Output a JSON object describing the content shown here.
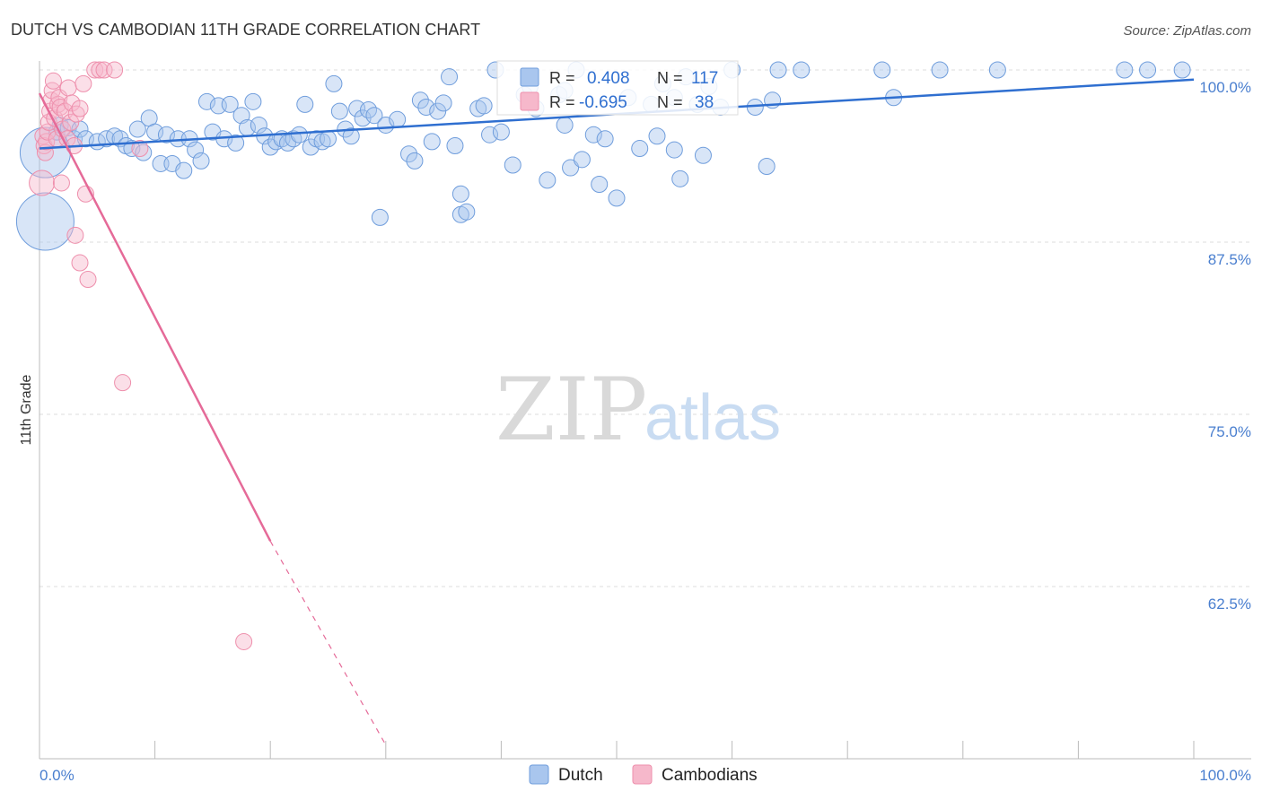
{
  "title": "DUTCH VS CAMBODIAN 11TH GRADE CORRELATION CHART",
  "source": "Source: ZipAtlas.com",
  "watermark": {
    "zip": "ZIP",
    "atlas": "atlas"
  },
  "colors": {
    "dutch_fill": "#a9c6ee",
    "dutch_stroke": "#6f9ddc",
    "dutch_line": "#2f6fd0",
    "cambodian_fill": "#f6b8cb",
    "cambodian_stroke": "#ee8fac",
    "cambodian_line": "#e56a98",
    "tick_text": "#4a7fcf",
    "grid": "#dddddd"
  },
  "legend_top": {
    "r_label": "R =",
    "n_label": "N =",
    "dutch_r": "0.408",
    "dutch_n": "117",
    "cambodian_r": "-0.695",
    "cambodian_n": "38"
  },
  "legend_bottom": {
    "dutch": "Dutch",
    "cambodians": "Cambodians"
  },
  "chart_data": {
    "type": "scatter",
    "title": "DUTCH VS CAMBODIAN 11TH GRADE CORRELATION CHART",
    "xlabel": "",
    "ylabel": "11th Grade",
    "xlim": [
      0,
      100
    ],
    "ylim": [
      50,
      101.5
    ],
    "y_ticks": [
      62.5,
      75.0,
      87.5,
      100.0
    ],
    "y_tick_labels": [
      "62.5%",
      "75.0%",
      "87.5%",
      "100.0%"
    ],
    "x_tick_labels": [
      "0.0%",
      "100.0%"
    ],
    "grid": true,
    "legend_position": "top-center",
    "series": [
      {
        "name": "Dutch",
        "r": 0.408,
        "n": 117,
        "trend": {
          "x": [
            0,
            100
          ],
          "y": [
            94.3,
            99.3
          ]
        },
        "points": [
          [
            0.5,
            94.0,
            28
          ],
          [
            0.5,
            89.0,
            32
          ],
          [
            1.5,
            95.5,
            9
          ],
          [
            1.8,
            96.0,
            9
          ],
          [
            2.5,
            95.8,
            9
          ],
          [
            3.0,
            95.0,
            9
          ],
          [
            3.5,
            95.7,
            9
          ],
          [
            4.0,
            95.0,
            9
          ],
          [
            5.0,
            94.8,
            9
          ],
          [
            5.8,
            95.0,
            9
          ],
          [
            6.5,
            95.2,
            9
          ],
          [
            7.0,
            95.0,
            9
          ],
          [
            7.5,
            94.5,
            9
          ],
          [
            8.0,
            94.3,
            9
          ],
          [
            8.5,
            95.7,
            9
          ],
          [
            9.0,
            94.0,
            9
          ],
          [
            9.5,
            96.5,
            9
          ],
          [
            10.0,
            95.5,
            9
          ],
          [
            10.5,
            93.2,
            9
          ],
          [
            11.0,
            95.3,
            9
          ],
          [
            11.5,
            93.2,
            9
          ],
          [
            12.0,
            95.0,
            9
          ],
          [
            12.5,
            92.7,
            9
          ],
          [
            13.0,
            95.0,
            9
          ],
          [
            13.5,
            94.2,
            9
          ],
          [
            14.0,
            93.4,
            9
          ],
          [
            14.5,
            97.7,
            9
          ],
          [
            15.0,
            95.5,
            9
          ],
          [
            15.5,
            97.4,
            9
          ],
          [
            16.0,
            95.0,
            9
          ],
          [
            16.5,
            97.5,
            9
          ],
          [
            17.0,
            94.7,
            9
          ],
          [
            17.5,
            96.7,
            9
          ],
          [
            18.0,
            95.8,
            9
          ],
          [
            18.5,
            97.7,
            9
          ],
          [
            19.0,
            96.0,
            9
          ],
          [
            19.5,
            95.2,
            9
          ],
          [
            20.0,
            94.4,
            9
          ],
          [
            20.5,
            94.8,
            9
          ],
          [
            21.0,
            95.0,
            9
          ],
          [
            21.5,
            94.7,
            9
          ],
          [
            22.0,
            95.0,
            9
          ],
          [
            22.5,
            95.3,
            9
          ],
          [
            23.0,
            97.5,
            9
          ],
          [
            23.5,
            94.4,
            9
          ],
          [
            24.0,
            95.0,
            9
          ],
          [
            24.5,
            94.8,
            9
          ],
          [
            25.0,
            95.0,
            9
          ],
          [
            25.5,
            99.0,
            9
          ],
          [
            26.0,
            97.0,
            9
          ],
          [
            26.5,
            95.7,
            9
          ],
          [
            27.0,
            95.2,
            9
          ],
          [
            27.5,
            97.2,
            9
          ],
          [
            28.0,
            96.5,
            9
          ],
          [
            28.5,
            97.1,
            9
          ],
          [
            29.0,
            96.7,
            9
          ],
          [
            29.5,
            89.3,
            9
          ],
          [
            30.0,
            96.0,
            9
          ],
          [
            31.0,
            96.4,
            9
          ],
          [
            32.0,
            93.9,
            9
          ],
          [
            32.5,
            93.4,
            9
          ],
          [
            33.0,
            97.8,
            9
          ],
          [
            33.5,
            97.3,
            9
          ],
          [
            34.0,
            94.8,
            9
          ],
          [
            34.5,
            97.0,
            9
          ],
          [
            35.0,
            97.6,
            9
          ],
          [
            35.5,
            99.5,
            9
          ],
          [
            36.0,
            94.5,
            9
          ],
          [
            36.5,
            91.0,
            9
          ],
          [
            36.5,
            89.5,
            9
          ],
          [
            37.0,
            89.7,
            9
          ],
          [
            38.0,
            97.2,
            9
          ],
          [
            38.5,
            97.4,
            9
          ],
          [
            39.0,
            95.3,
            9
          ],
          [
            39.5,
            100.0,
            9
          ],
          [
            40.0,
            95.5,
            9
          ],
          [
            41.0,
            93.1,
            9
          ],
          [
            42.0,
            98.2,
            9
          ],
          [
            42.5,
            98.8,
            9
          ],
          [
            43.0,
            97.2,
            9
          ],
          [
            44.0,
            92.0,
            9
          ],
          [
            45.0,
            98.2,
            9
          ],
          [
            45.5,
            96.0,
            9
          ],
          [
            46.0,
            92.9,
            9
          ],
          [
            46.5,
            100.0,
            9
          ],
          [
            47.0,
            93.5,
            9
          ],
          [
            48.0,
            95.3,
            9
          ],
          [
            48.5,
            91.7,
            9
          ],
          [
            49.0,
            95.0,
            9
          ],
          [
            50.0,
            90.7,
            9
          ],
          [
            51.0,
            98.0,
            9
          ],
          [
            52.0,
            94.3,
            9
          ],
          [
            53.0,
            97.5,
            9
          ],
          [
            53.5,
            95.2,
            9
          ],
          [
            54.0,
            99.0,
            9
          ],
          [
            55.0,
            94.2,
            9
          ],
          [
            55.5,
            92.1,
            9
          ],
          [
            56.0,
            99.5,
            9
          ],
          [
            57.0,
            97.5,
            9
          ],
          [
            57.5,
            93.8,
            9
          ],
          [
            58.0,
            98.8,
            9
          ],
          [
            59.0,
            97.3,
            9
          ],
          [
            60.0,
            100.0,
            9
          ],
          [
            62.0,
            97.3,
            9
          ],
          [
            63.0,
            93.0,
            9
          ],
          [
            63.5,
            97.8,
            9
          ],
          [
            64.0,
            100.0,
            9
          ],
          [
            66.0,
            100.0,
            9
          ],
          [
            73.0,
            100.0,
            9
          ],
          [
            74.0,
            98.0,
            9
          ],
          [
            78.0,
            100.0,
            9
          ],
          [
            83.0,
            100.0,
            9
          ],
          [
            94.0,
            100.0,
            9
          ],
          [
            96.0,
            100.0,
            9
          ],
          [
            99.0,
            100.0,
            9
          ],
          [
            45.5,
            98.5,
            9
          ],
          [
            55.0,
            98.0,
            9
          ]
        ]
      },
      {
        "name": "Cambodians",
        "r": -0.695,
        "n": 38,
        "trend": {
          "x": [
            0,
            20
          ],
          "y": [
            98.3,
            65.8
          ]
        },
        "trend_dashed": {
          "x": [
            20,
            30
          ],
          "y": [
            65.8,
            51.0
          ]
        },
        "points": [
          [
            0.2,
            91.8,
            14
          ],
          [
            0.3,
            95.2,
            9
          ],
          [
            0.4,
            94.5,
            9
          ],
          [
            0.5,
            94.0,
            9
          ],
          [
            0.6,
            94.8,
            9
          ],
          [
            0.7,
            95.5,
            9
          ],
          [
            0.8,
            96.2,
            9
          ],
          [
            0.9,
            97.0,
            9
          ],
          [
            1.0,
            97.8,
            9
          ],
          [
            1.1,
            98.5,
            9
          ],
          [
            1.2,
            99.2,
            9
          ],
          [
            1.3,
            96.5,
            9
          ],
          [
            1.5,
            95.0,
            9
          ],
          [
            1.6,
            97.5,
            9
          ],
          [
            1.7,
            98.0,
            9
          ],
          [
            1.8,
            97.3,
            9
          ],
          [
            1.9,
            91.8,
            9
          ],
          [
            2.0,
            95.7,
            9
          ],
          [
            2.2,
            97.0,
            9
          ],
          [
            2.4,
            95.0,
            9
          ],
          [
            2.5,
            98.7,
            9
          ],
          [
            2.7,
            96.2,
            9
          ],
          [
            2.8,
            97.6,
            9
          ],
          [
            3.0,
            94.5,
            9
          ],
          [
            3.1,
            88.0,
            9
          ],
          [
            3.2,
            96.8,
            9
          ],
          [
            3.5,
            97.2,
            9
          ],
          [
            3.5,
            86.0,
            9
          ],
          [
            3.8,
            99.0,
            9
          ],
          [
            4.0,
            91.0,
            9
          ],
          [
            4.2,
            84.8,
            9
          ],
          [
            4.8,
            100.0,
            9
          ],
          [
            5.2,
            100.0,
            9
          ],
          [
            5.6,
            100.0,
            9
          ],
          [
            6.5,
            100.0,
            9
          ],
          [
            7.2,
            77.3,
            9
          ],
          [
            8.7,
            94.3,
            9
          ],
          [
            17.7,
            58.5,
            9
          ]
        ]
      }
    ]
  }
}
